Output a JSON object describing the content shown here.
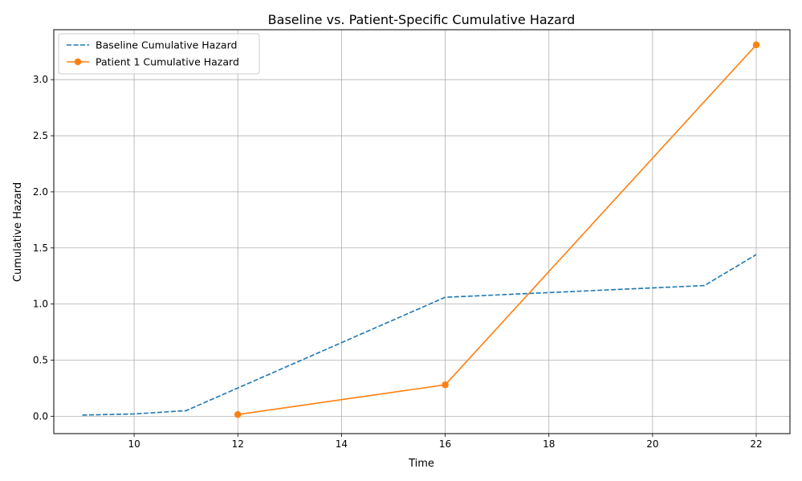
{
  "chart_data": {
    "type": "line",
    "title": "Baseline vs. Patient-Specific Cumulative Hazard",
    "xlabel": "Time",
    "ylabel": "Cumulative Hazard",
    "xlim": [
      8.45,
      22.65
    ],
    "ylim": [
      -0.155,
      3.445
    ],
    "xticks": [
      10,
      12,
      14,
      16,
      18,
      20,
      22
    ],
    "yticks": [
      0.0,
      0.5,
      1.0,
      1.5,
      2.0,
      2.5,
      3.0
    ],
    "xtick_labels": [
      "10",
      "12",
      "14",
      "16",
      "18",
      "20",
      "22"
    ],
    "ytick_labels": [
      "0.0",
      "0.5",
      "1.0",
      "1.5",
      "2.0",
      "2.5",
      "3.0"
    ],
    "grid": true,
    "legend_position": "upper left",
    "series": [
      {
        "name": "Baseline Cumulative Hazard",
        "color": "#1f77b4",
        "style": "dashed",
        "markers": false,
        "x": [
          9,
          10,
          11,
          16,
          21,
          22
        ],
        "y": [
          0.01,
          0.02,
          0.05,
          1.06,
          1.165,
          1.44
        ]
      },
      {
        "name": "Patient 1 Cumulative Hazard",
        "color": "#ff7f0e",
        "style": "solid",
        "markers": true,
        "x": [
          12,
          16,
          22
        ],
        "y": [
          0.015,
          0.28,
          3.31
        ]
      }
    ]
  }
}
